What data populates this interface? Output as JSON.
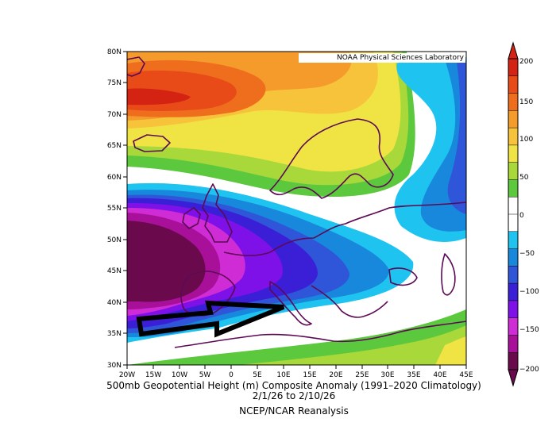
{
  "map": {
    "producer_label": "NOAA Physical Sciences Laboratory",
    "title_line1": "500mb Geopotential Height (m) Composite Anomaly (1991–2020 Climatology)",
    "title_line2": "2/1/26  to 2/10/26",
    "source": "NCEP/NCAR Reanalysis",
    "lat_labels": [
      "80N",
      "75N",
      "70N",
      "65N",
      "60N",
      "55N",
      "50N",
      "45N",
      "40N",
      "35N",
      "30N"
    ],
    "lon_labels": [
      "20W",
      "15W",
      "10W",
      "5W",
      "0",
      "5E",
      "10E",
      "15E",
      "20E",
      "25E",
      "30E",
      "35E",
      "40E",
      "45E"
    ],
    "colorbar_labels": [
      "200",
      "150",
      "100",
      "50",
      "0",
      "−50",
      "−100",
      "−150",
      "−200"
    ],
    "colorbar_colors": [
      "#6a0a4d",
      "#a8109a",
      "#cf2cd6",
      "#7e10e8",
      "#3a1fd7",
      "#2f55d9",
      "#1888dc",
      "#1ec3ef",
      "#ffffff",
      "#ffffff",
      "#5bc83d",
      "#a8d83a",
      "#f0e445",
      "#f7c33a",
      "#f59b2b",
      "#ef6e1e",
      "#e84a18",
      "#d42313"
    ],
    "annotation": "black-arrow"
  }
}
